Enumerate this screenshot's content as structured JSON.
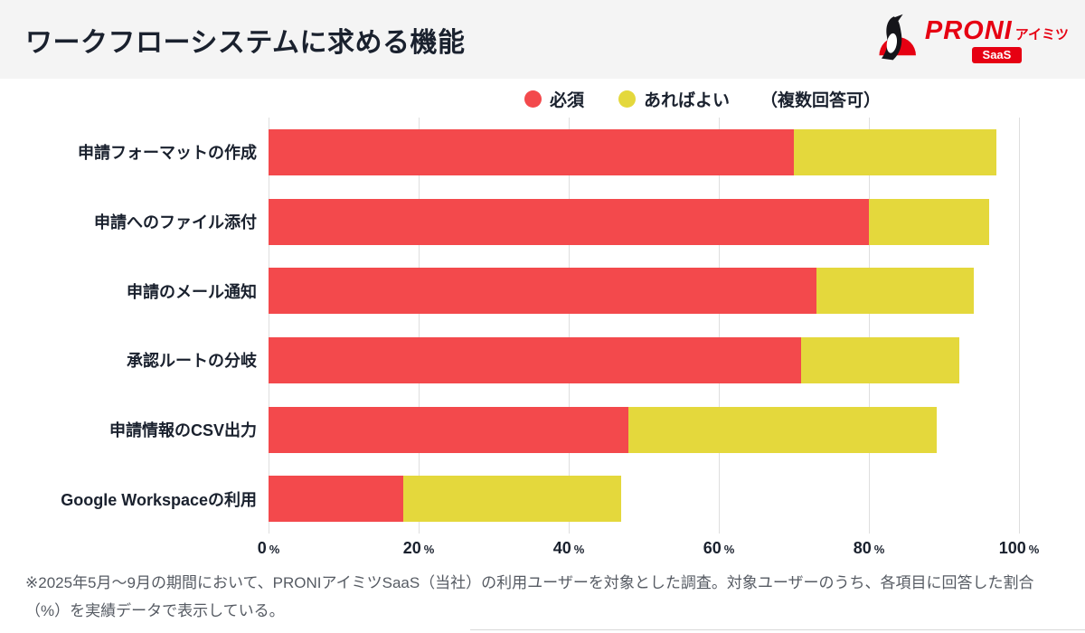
{
  "header": {
    "title": "ワークフローシステムに求める機能",
    "logo": {
      "brand": "PRONI",
      "suffix": "アイミツ",
      "badge": "SaaS",
      "color": "#e60012"
    }
  },
  "legend": {
    "items": [
      {
        "label": "必須",
        "color": "#f3494c"
      },
      {
        "label": "あればよい",
        "color": "#e4d83c"
      }
    ],
    "note": "（複数回答可）"
  },
  "chart_data": {
    "type": "bar",
    "orientation": "horizontal",
    "stacked": true,
    "title": "ワークフローシステムに求める機能",
    "categories": [
      "申請フォーマットの作成",
      "申請へのファイル添付",
      "申請のメール通知",
      "承認ルートの分岐",
      "申請情報のCSV出力",
      "Google Workspaceの利用"
    ],
    "series": [
      {
        "name": "必須",
        "color": "#f3494c",
        "values": [
          70,
          80,
          73,
          71,
          48,
          18
        ]
      },
      {
        "name": "あればよい",
        "color": "#e4d83c",
        "values": [
          27,
          16,
          21,
          21,
          41,
          29
        ]
      }
    ],
    "totals": [
      97,
      96,
      94,
      92,
      89,
      47
    ],
    "xlabel": "",
    "ylabel": "",
    "xlim": [
      0,
      100
    ],
    "x_ticks": [
      0,
      20,
      40,
      60,
      80,
      100
    ],
    "x_unit": "%",
    "grid": "vertical",
    "gridline_color": "#dedede",
    "legend_position": "top"
  },
  "footnote": "※2025年5月〜9月の期間において、PRONIアイミツSaaS（当社）の利用ユーザーを対象とした調査。対象ユーザーのうち、各項目に回答した割合（%）を実績データで表示している。"
}
